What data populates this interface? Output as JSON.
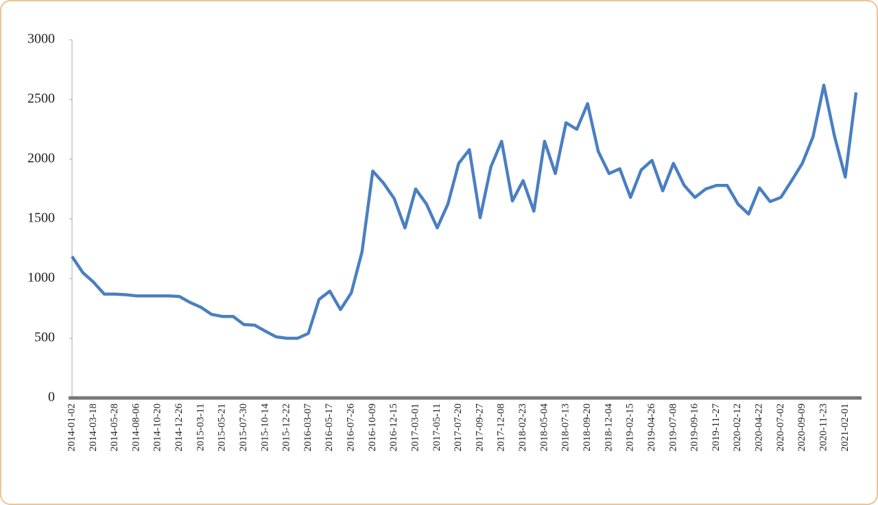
{
  "chart_data": {
    "type": "line",
    "categories": [
      "2014-01-02",
      null,
      "2014-03-18",
      null,
      "2014-05-28",
      null,
      "2014-08-06",
      null,
      "2014-10-20",
      null,
      "2014-12-26",
      null,
      "2015-03-11",
      null,
      "2015-05-21",
      null,
      "2015-07-30",
      null,
      "2015-10-14",
      null,
      "2015-12-22",
      null,
      "2016-03-07",
      null,
      "2016-05-17",
      null,
      "2016-07-26",
      null,
      "2016-10-09",
      null,
      "2016-12-15",
      null,
      "2017-03-01",
      null,
      "2017-05-11",
      null,
      "2017-07-20",
      null,
      "2017-09-27",
      null,
      "2017-12-08",
      null,
      "2018-02-23",
      null,
      "2018-05-04",
      null,
      "2018-07-13",
      null,
      "2018-09-20",
      null,
      "2018-12-04",
      null,
      "2019-02-15",
      null,
      "2019-04-26",
      null,
      "2019-07-08",
      null,
      "2019-09-16",
      null,
      "2019-11-27",
      null,
      "2020-02-12",
      null,
      "2020-04-22",
      null,
      "2020-07-02",
      null,
      "2020-09-09",
      null,
      "2020-11-23",
      null,
      "2021-02-01",
      null
    ],
    "values": [
      1185,
      1050,
      970,
      870,
      870,
      865,
      855,
      855,
      855,
      855,
      850,
      800,
      760,
      700,
      683,
      683,
      615,
      610,
      560,
      512,
      500,
      500,
      540,
      825,
      895,
      740,
      880,
      1225,
      1900,
      1800,
      1670,
      1425,
      1750,
      1625,
      1425,
      1625,
      1965,
      2080,
      1510,
      1935,
      2150,
      1650,
      1820,
      1565,
      2150,
      1880,
      2305,
      2250,
      2465,
      2065,
      1880,
      1920,
      1680,
      1910,
      1990,
      1735,
      1965,
      1780,
      1680,
      1750,
      1780,
      1780,
      1625,
      1540,
      1760,
      1645,
      1680,
      1820,
      1965,
      2190,
      2620,
      2190,
      1850,
      2560
    ],
    "color": "#4a7fc1",
    "ylim": [
      0,
      3000
    ],
    "yticks": [
      0,
      500,
      1000,
      1500,
      2000,
      2500,
      3000
    ]
  }
}
